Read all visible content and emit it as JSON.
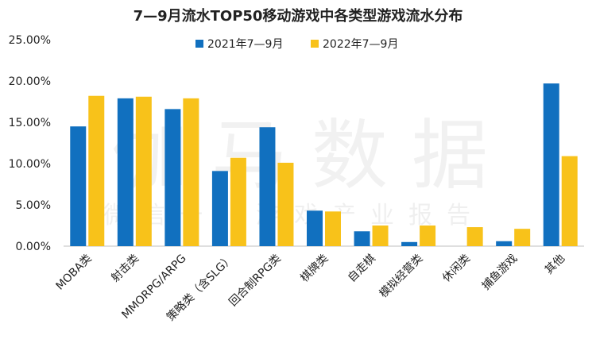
{
  "chart_data": {
    "type": "bar",
    "title": "7—9月流水TOP50移动游戏中各类型游戏流水分布",
    "categories": [
      "MOBA类",
      "射击类",
      "MMORPG/ARPG",
      "策略类（含SLG）",
      "回合制RPG类",
      "棋牌类",
      "自走棋",
      "模拟经营类",
      "休闲类",
      "捕鱼游戏",
      "其他"
    ],
    "series": [
      {
        "name": "2021年7—9月",
        "color": "#1170bf",
        "values": [
          14.5,
          17.9,
          16.6,
          9.1,
          14.4,
          4.3,
          1.8,
          0.5,
          0.0,
          0.6,
          19.7
        ]
      },
      {
        "name": "2022年7—9月",
        "color": "#f8c21a",
        "values": [
          18.2,
          18.1,
          17.9,
          10.7,
          10.1,
          4.2,
          2.5,
          2.5,
          2.3,
          2.1,
          10.9
        ]
      }
    ],
    "ylim": [
      0,
      25
    ],
    "yticks": [
      "0.00%",
      "5.00%",
      "10.00%",
      "15.00%",
      "20.00%",
      "25.00%"
    ],
    "grid": false,
    "legend_position": "top-center"
  },
  "watermark": {
    "main": "伽马数据",
    "sub": "微信号：游戏产业报告"
  }
}
